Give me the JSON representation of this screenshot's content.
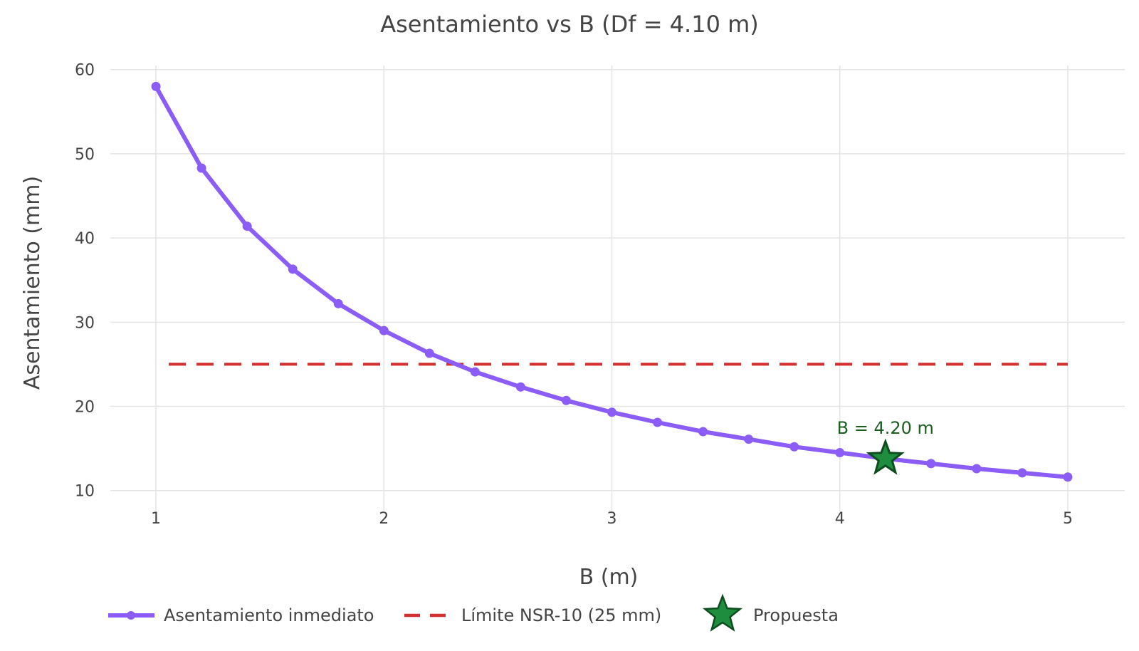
{
  "chart_data": {
    "type": "line",
    "title": "Asentamiento vs B (Df = 4.10 m)",
    "xlabel": "B (m)",
    "ylabel": "Asentamiento (mm)",
    "xlim": [
      0.8,
      5.25
    ],
    "ylim": [
      8.2,
      61.5
    ],
    "x_ticks": [
      1,
      2,
      3,
      4,
      5
    ],
    "y_ticks": [
      10,
      20,
      30,
      40,
      50,
      60
    ],
    "grid": true,
    "legend_position": "bottom",
    "series": [
      {
        "name": "Asentamiento inmediato",
        "color": "#8b5cf6",
        "marker": "circle",
        "x": [
          1.0,
          1.2,
          1.4,
          1.6,
          1.8,
          2.0,
          2.2,
          2.4,
          2.6,
          2.8,
          3.0,
          3.2,
          3.4,
          3.6,
          3.8,
          4.0,
          4.2,
          4.4,
          4.6,
          4.8,
          5.0
        ],
        "y": [
          58.0,
          48.3,
          41.4,
          36.3,
          32.2,
          29.0,
          26.3,
          24.1,
          22.3,
          20.7,
          19.3,
          18.1,
          17.0,
          16.1,
          15.2,
          14.5,
          13.8,
          13.2,
          12.6,
          12.1,
          11.6
        ]
      },
      {
        "name": "Límite NSR-10 (25 mm)",
        "color": "#d32f2f",
        "dash": "dashed",
        "x": [
          1.0,
          5.0
        ],
        "y": [
          25,
          25
        ]
      },
      {
        "name": "Propuesta",
        "color": "#1e8e3e",
        "marker": "star",
        "x": [
          4.2
        ],
        "y": [
          13.8
        ]
      }
    ],
    "annotations": [
      {
        "text": "B = 4.20 m",
        "x": 4.2,
        "y": 13.8
      }
    ]
  }
}
